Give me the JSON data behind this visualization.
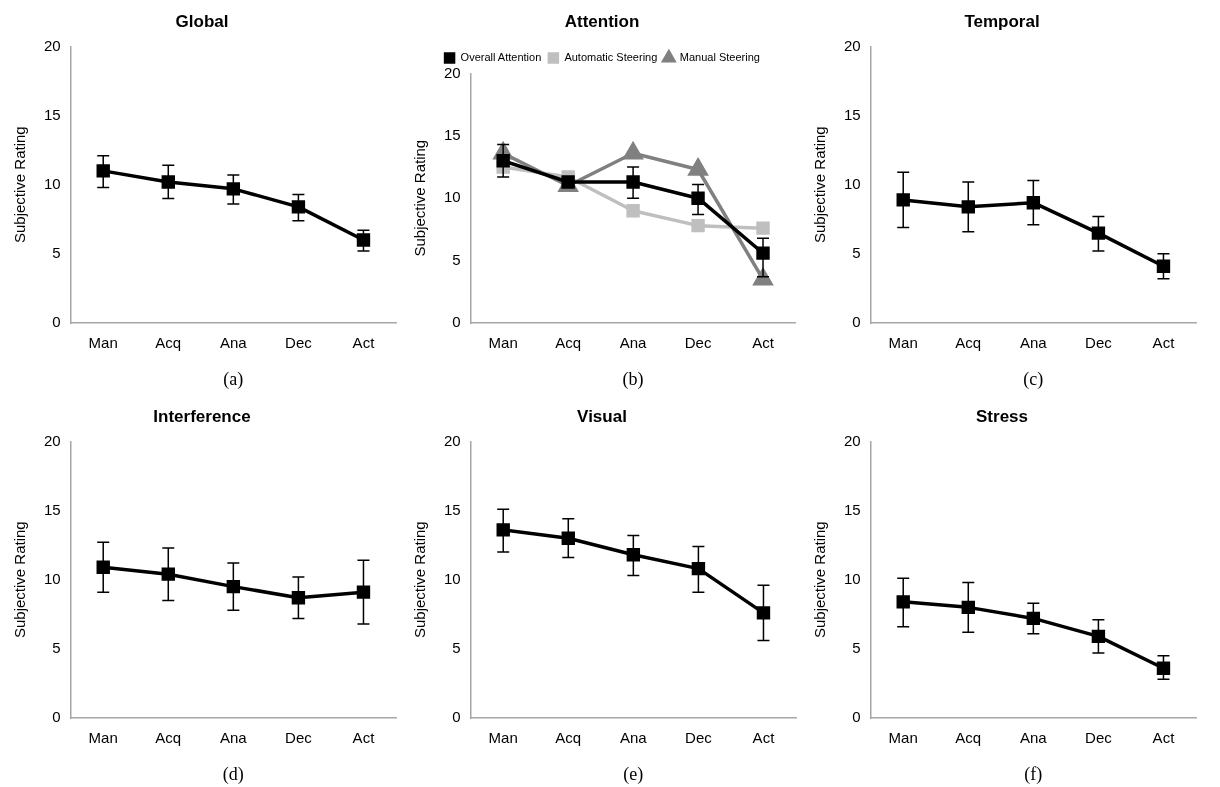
{
  "chart_data": [
    {
      "type": "line",
      "title": "Global",
      "ylabel": "Subjective Rating",
      "categories": [
        "Man",
        "Acq",
        "Ana",
        "Dec",
        "Act"
      ],
      "values": [
        11.0,
        10.2,
        9.7,
        8.4,
        6.0
      ],
      "errors": [
        [
          9.8,
          12.1
        ],
        [
          9.0,
          11.4
        ],
        [
          8.6,
          10.7
        ],
        [
          7.4,
          9.3
        ],
        [
          5.2,
          6.7
        ]
      ],
      "color": "#000000",
      "marker": "square",
      "ylim": [
        0,
        20
      ],
      "yticks": [
        0,
        5,
        10,
        15,
        20
      ],
      "grid": false,
      "legend": false,
      "annotations": [
        "(a)"
      ]
    },
    {
      "type": "line",
      "title": "Attention",
      "ylabel": "Subjective Rating",
      "categories": [
        "Man",
        "Acq",
        "Ana",
        "Dec",
        "Act"
      ],
      "series": [
        {
          "name": "Overall Attention",
          "color": "#000000",
          "marker": "square",
          "values": [
            13.0,
            11.3,
            11.3,
            10.0,
            5.6
          ],
          "errors": [
            [
              11.7,
              14.3
            ],
            null,
            [
              10.0,
              12.5
            ],
            [
              8.7,
              11.1
            ],
            [
              3.7,
              6.8
            ]
          ]
        },
        {
          "name": "Automatic Steering",
          "color": "#bfbfbf",
          "marker": "square",
          "values": [
            12.5,
            11.7,
            9.0,
            7.8,
            7.6
          ]
        },
        {
          "name": "Manual Steering",
          "color": "#808080",
          "marker": "triangle",
          "values": [
            13.6,
            11.0,
            13.6,
            12.3,
            3.5
          ]
        }
      ],
      "ylim": [
        0,
        20
      ],
      "yticks": [
        0,
        5,
        10,
        15,
        20
      ],
      "grid": false,
      "legend": "top",
      "annotations": [
        "(b)"
      ]
    },
    {
      "type": "line",
      "title": "Temporal",
      "ylabel": "Subjective Rating",
      "categories": [
        "Man",
        "Acq",
        "Ana",
        "Dec",
        "Act"
      ],
      "values": [
        8.9,
        8.4,
        8.7,
        6.5,
        4.1
      ],
      "errors": [
        [
          6.9,
          10.9
        ],
        [
          6.6,
          10.2
        ],
        [
          7.1,
          10.3
        ],
        [
          5.2,
          7.7
        ],
        [
          3.2,
          5.0
        ]
      ],
      "color": "#000000",
      "marker": "square",
      "ylim": [
        0,
        20
      ],
      "yticks": [
        0,
        5,
        10,
        15,
        20
      ],
      "grid": false,
      "legend": false,
      "annotations": [
        "(c)"
      ]
    },
    {
      "type": "line",
      "title": "Interference",
      "ylabel": "Subjective Rating",
      "categories": [
        "Man",
        "Acq",
        "Ana",
        "Dec",
        "Act"
      ],
      "values": [
        10.9,
        10.4,
        9.5,
        8.7,
        9.1
      ],
      "errors": [
        [
          9.1,
          12.7
        ],
        [
          8.5,
          12.3
        ],
        [
          7.8,
          11.2
        ],
        [
          7.2,
          10.2
        ],
        [
          6.8,
          11.4
        ]
      ],
      "color": "#000000",
      "marker": "square",
      "ylim": [
        0,
        20
      ],
      "yticks": [
        0,
        5,
        10,
        15,
        20
      ],
      "grid": false,
      "legend": false,
      "annotations": [
        "(d)"
      ]
    },
    {
      "type": "line",
      "title": "Visual",
      "ylabel": "Subjective Rating",
      "categories": [
        "Man",
        "Acq",
        "Ana",
        "Dec",
        "Act"
      ],
      "values": [
        13.6,
        13.0,
        11.8,
        10.8,
        7.6
      ],
      "errors": [
        [
          12.0,
          15.1
        ],
        [
          11.6,
          14.4
        ],
        [
          10.3,
          13.2
        ],
        [
          9.1,
          12.4
        ],
        [
          5.6,
          9.6
        ]
      ],
      "color": "#000000",
      "marker": "square",
      "ylim": [
        0,
        20
      ],
      "yticks": [
        0,
        5,
        10,
        15,
        20
      ],
      "grid": false,
      "legend": false,
      "annotations": [
        "(e)"
      ]
    },
    {
      "type": "line",
      "title": "Stress",
      "ylabel": "Subjective Rating",
      "categories": [
        "Man",
        "Acq",
        "Ana",
        "Dec",
        "Act"
      ],
      "values": [
        8.4,
        8.0,
        7.2,
        5.9,
        3.6
      ],
      "errors": [
        [
          6.6,
          10.1
        ],
        [
          6.2,
          9.8
        ],
        [
          6.1,
          8.3
        ],
        [
          4.7,
          7.1
        ],
        [
          2.8,
          4.5
        ]
      ],
      "color": "#000000",
      "marker": "square",
      "ylim": [
        0,
        20
      ],
      "yticks": [
        0,
        5,
        10,
        15,
        20
      ],
      "grid": false,
      "legend": false,
      "annotations": [
        "(f)"
      ]
    }
  ]
}
